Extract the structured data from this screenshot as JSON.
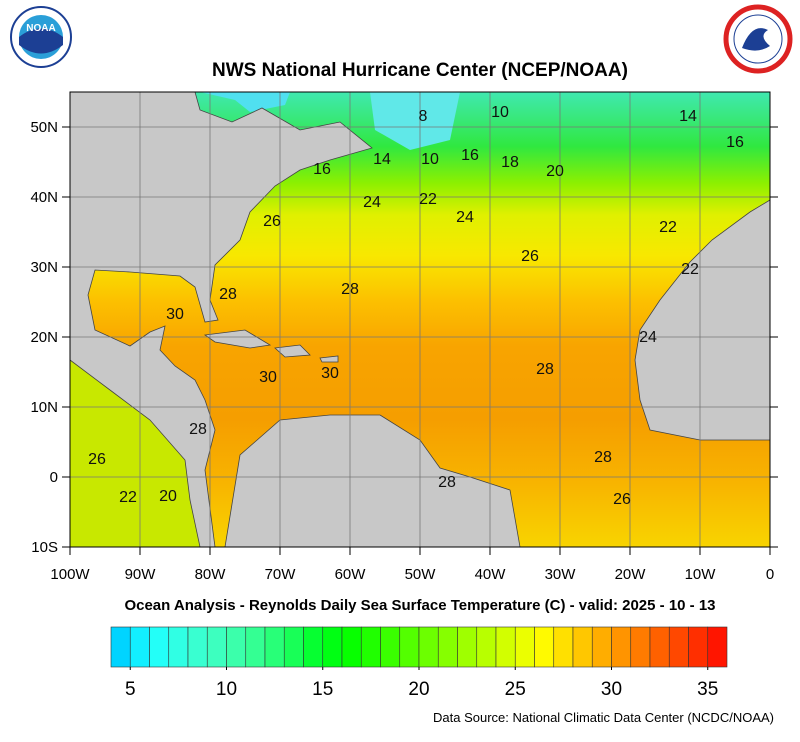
{
  "map": {
    "title": "NWS National Hurricane Center (NCEP/NOAA)",
    "subtitle": "Ocean Analysis - Reynolds Daily Sea Surface Temperature (C) - valid: 2025 - 10 - 13",
    "source": "Data Source: National Climatic Data Center (NCDC/NOAA)",
    "logo_text": "NOAA",
    "lonlim": [
      -100,
      0
    ],
    "latlim": [
      -10,
      55
    ],
    "lon_ticks": [
      {
        "value": -100,
        "label": "100W"
      },
      {
        "value": -90,
        "label": "90W"
      },
      {
        "value": -80,
        "label": "80W"
      },
      {
        "value": -70,
        "label": "70W"
      },
      {
        "value": -60,
        "label": "60W"
      },
      {
        "value": -50,
        "label": "50W"
      },
      {
        "value": -40,
        "label": "40W"
      },
      {
        "value": -30,
        "label": "30W"
      },
      {
        "value": -20,
        "label": "20W"
      },
      {
        "value": -10,
        "label": "10W"
      },
      0
    ],
    "lat_ticks": [
      {
        "value": 50,
        "label": "50N"
      },
      {
        "value": 40,
        "label": "40N"
      },
      {
        "value": 30,
        "label": "30N"
      },
      {
        "value": 20,
        "label": "20N"
      },
      {
        "value": 10,
        "label": "10N"
      },
      0,
      {
        "value": -10,
        "label": "10S"
      }
    ],
    "grid": true,
    "contour_labels": [
      "8",
      "10",
      "14",
      "16",
      "16",
      "14",
      "10",
      "16",
      "18",
      "20",
      "22",
      "24",
      "24",
      "26",
      "22",
      "26",
      "22",
      "28",
      "28",
      "30",
      "24",
      "30",
      "30",
      "28",
      "28",
      "26",
      "28",
      "28",
      "22",
      "20",
      "26"
    ],
    "colorbar": {
      "range": [
        4,
        36
      ],
      "ticks": [
        5,
        10,
        15,
        20,
        25,
        30,
        35
      ]
    }
  }
}
